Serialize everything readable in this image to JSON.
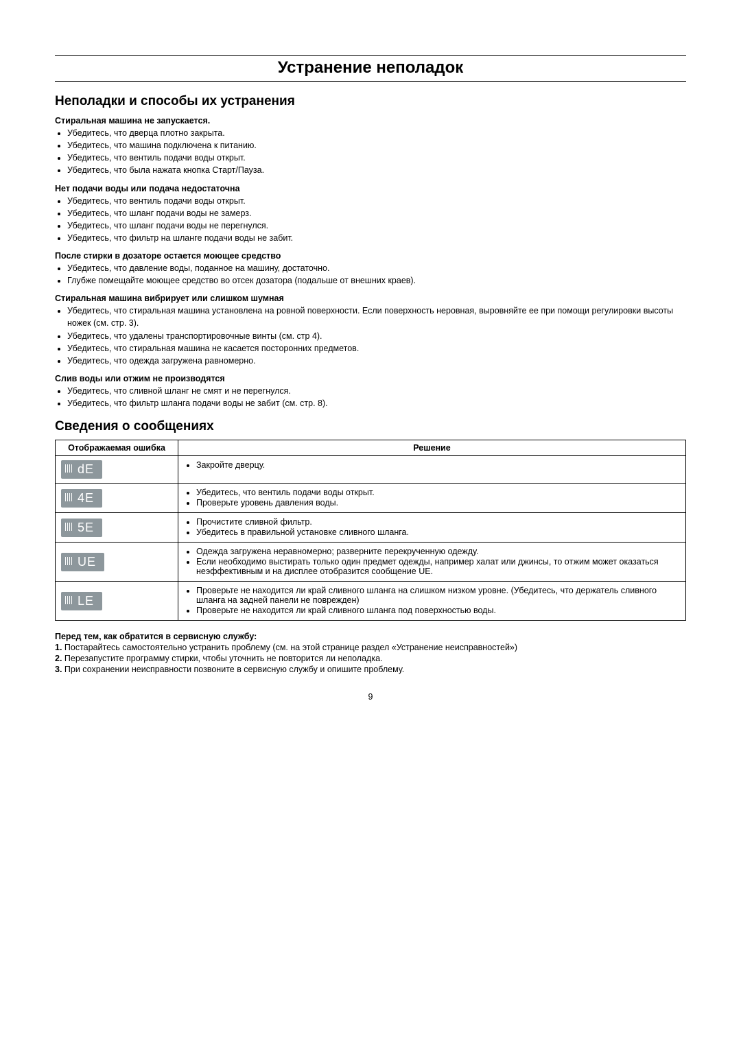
{
  "page": {
    "title": "Устранение неполадок",
    "section1": "Неполадки и способы их устранения",
    "section2": "Сведения о сообщениях",
    "page_number": "9"
  },
  "troubleshoot": [
    {
      "heading": "Стиральная машина не запускается.",
      "items": [
        "Убедитесь, что дверца плотно закрыта.",
        "Убедитесь, что машина подключена к питанию.",
        "Убедитесь, что вентиль подачи воды открыт.",
        "Убедитесь, что была нажата кнопка Старт/Пауза."
      ]
    },
    {
      "heading": "Нет подачи воды или подача недостаточна",
      "items": [
        "Убедитесь, что вентиль подачи воды открыт.",
        "Убедитесь, что шланг подачи воды не замерз.",
        "Убедитесь, что шланг подачи воды не перегнулся.",
        "Убедитесь, что фильтр на шланге подачи воды не забит."
      ]
    },
    {
      "heading": "После стирки в дозаторе остается моющее средство",
      "items": [
        "Убедитесь, что давление воды, поданное на машину, достаточно.",
        "Глубже помещайте моющее средство во отсек дозатора (подальше от внешних краев)."
      ]
    },
    {
      "heading": "Стиральная машина вибрирует или слишком шумная",
      "items": [
        "Убедитесь, что стиральная машина установлена на ровной поверхности. Если поверхность неровная, выровняйте ее при помощи регулировки высоты ножек (см. стр. 3).",
        "Убедитесь, что удалены транспортировочные винты (см. стр 4).",
        "Убедитесь, что стиральная машина не касается посторонних предметов.",
        "Убедитесь, что одежда загружена равномерно."
      ]
    },
    {
      "heading": "Слив воды или отжим не производятся",
      "items": [
        "Убедитесь, что сливной шланг не смят и не перегнулся.",
        "Убедитесь, что фильтр шланга подачи воды не забит (см. стр. 8)."
      ]
    }
  ],
  "table": {
    "col1": "Отображаемая ошибка",
    "col2": "Решение",
    "lcd_bg": "#8d979c",
    "lcd_fg": "#ffffff",
    "rows": [
      {
        "code": "dE",
        "solutions": [
          "Закройте дверцу."
        ]
      },
      {
        "code": "4E",
        "solutions": [
          "Убедитесь, что вентиль подачи воды открыт.",
          "Проверьте уровень давления воды."
        ]
      },
      {
        "code": "5E",
        "solutions": [
          "Прочистите сливной фильтр.",
          "Убедитесь в правильной установке сливного шланга."
        ]
      },
      {
        "code": "UE",
        "solutions": [
          "Одежда загружена неравномерно; разверните перекрученную одежду.",
          "Если необходимо выстирать только один предмет одежды, например халат или джинсы, то отжим может оказаться неэффективным и на дисплее отобразится сообщение UE."
        ]
      },
      {
        "code": "LE",
        "solutions": [
          "Проверьте не находится ли край сливного шланга на слишком низком уровне. (Убедитесь, что держатель сливного шланга на задней панели не поврежден)",
          "Проверьте не находится ли край сливного шланга под поверхностью воды."
        ]
      }
    ]
  },
  "before_service": {
    "heading": "Перед тем, как обратится в сервисную службу:",
    "steps": [
      "Постарайтесь самостоятельно устранить проблему (см. на этой странице раздел «Устранение неисправностей»)",
      "Перезапустите программу стирки, чтобы уточнить не повторится ли неполадка.",
      "При сохранении неисправности позвоните в сервисную службу и опишите проблему."
    ]
  }
}
